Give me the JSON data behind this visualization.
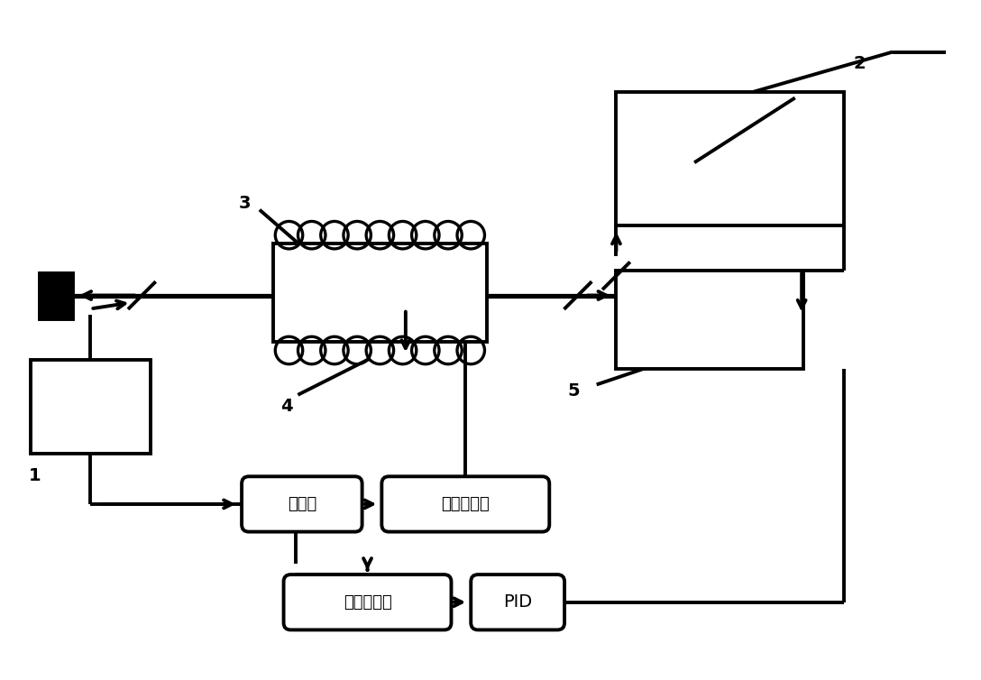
{
  "bg_color": "#ffffff",
  "lc": "#000000",
  "fw": 10.88,
  "fh": 7.54,
  "lw": 2.8,
  "labels": {
    "sig_src": "信号源",
    "sig_amp": "信号放大器",
    "lock_in": "锁相放大器",
    "pid": "PID",
    "n1": "1",
    "n2": "2",
    "n3": "3",
    "n4": "4",
    "n5": "5"
  }
}
